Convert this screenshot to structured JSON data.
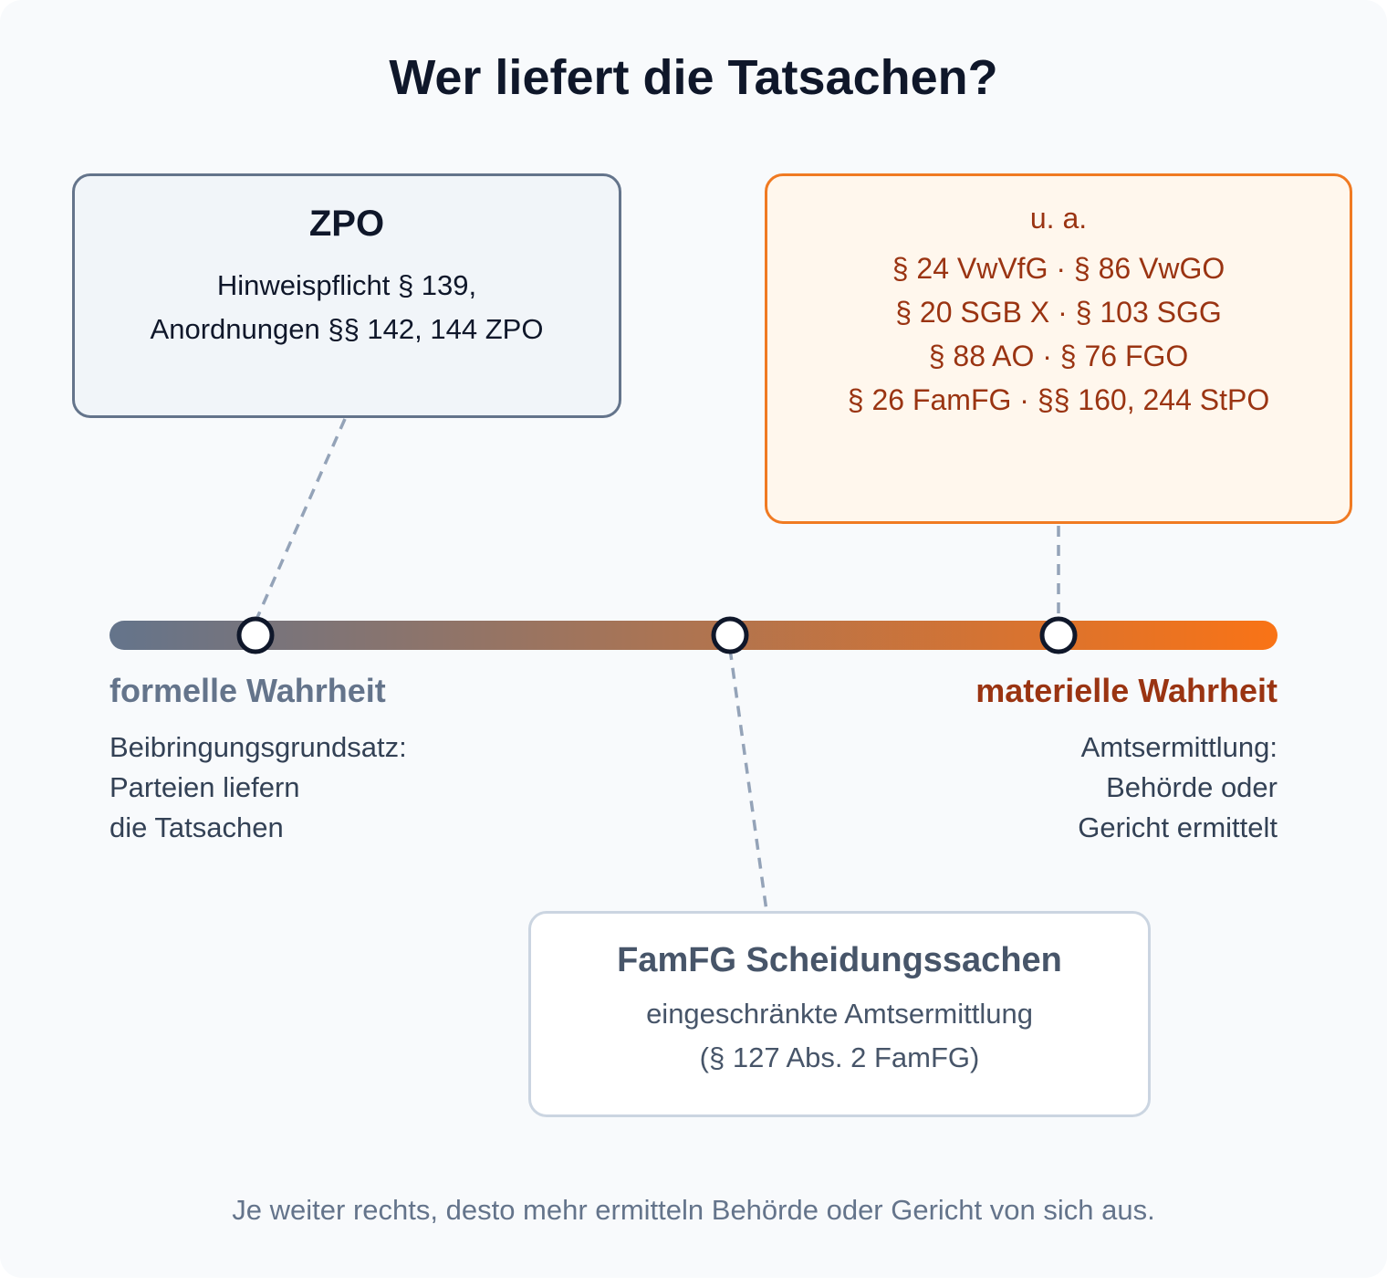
{
  "title": "Wer liefert die Tatsachen?",
  "colors": {
    "formal": "#64748b",
    "material": "#f97316",
    "material_text": "#9a3412",
    "connector": "#94a3b8",
    "marker_stroke": "#0f172a"
  },
  "scale": {
    "left_label": "formelle Wahrheit",
    "right_label": "materielle Wahrheit",
    "left_desc": [
      "Beibringungsgrundsatz:",
      "Parteien liefern",
      "die Tatsachen"
    ],
    "right_desc": [
      "Amtsermittlung:",
      "Behörde oder",
      "Gericht ermittelt"
    ]
  },
  "boxes": {
    "zpo": {
      "title": "ZPO",
      "lines": [
        "Hinweispflicht § 139,",
        "Anordnungen §§ 142, 144 ZPO"
      ]
    },
    "amts": {
      "intro": "u. a.",
      "lines": [
        "§ 24 VwVfG · § 86 VwGO",
        "§ 20 SGB X · § 103 SGG",
        "§ 88 AO · § 76 FGO",
        "§ 26 FamFG · §§ 160, 244 StPO"
      ]
    },
    "famfg": {
      "title": "FamFG Scheidungssachen",
      "lines": [
        "eingeschränkte Amtsermittlung",
        "(§ 127 Abs. 2 FamFG)"
      ]
    }
  },
  "footer": "Je weiter rechts, desto mehr ermitteln Behörde oder Gericht von sich aus."
}
